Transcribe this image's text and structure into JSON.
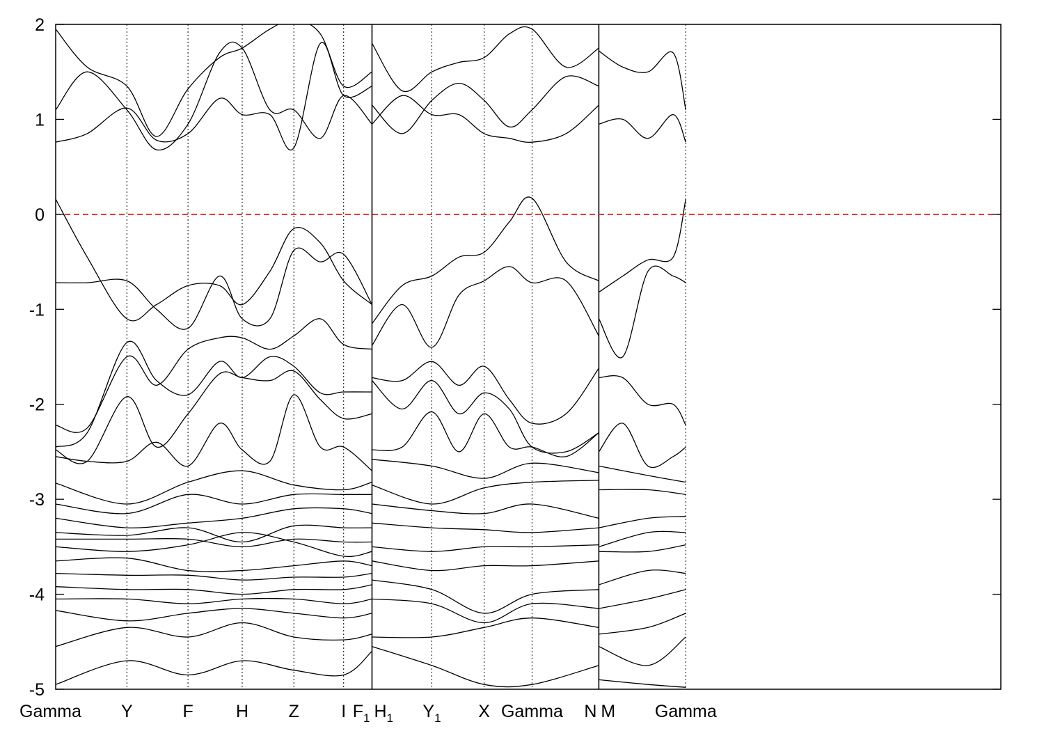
{
  "chart_data": {
    "type": "line",
    "title": "",
    "xlabel": "",
    "ylabel": "",
    "ylim": [
      -5,
      2
    ],
    "yticks": [
      -5,
      -4,
      -3,
      -2,
      -1,
      0,
      1,
      2
    ],
    "grid": "dotted vertical lines at high-symmetry points",
    "legend": "none",
    "x_range": [
      0,
      15
    ],
    "kpoints": [
      {
        "label": "Gamma",
        "sub": "",
        "x": 0
      },
      {
        "label": "Y",
        "sub": "",
        "x": 1.13
      },
      {
        "label": "F",
        "sub": "",
        "x": 2.1
      },
      {
        "label": "H",
        "sub": "",
        "x": 2.96
      },
      {
        "label": "Z",
        "sub": "",
        "x": 3.78
      },
      {
        "label": "I",
        "sub": "",
        "x": 4.57
      },
      {
        "label": "F",
        "sub": "1",
        "x": 5.02
      },
      {
        "label": "H",
        "sub": "1",
        "x": 5.02
      },
      {
        "label": "Y",
        "sub": "1",
        "x": 5.97
      },
      {
        "label": "X",
        "sub": "",
        "x": 6.8
      },
      {
        "label": "Gamma",
        "sub": "",
        "x": 7.56
      },
      {
        "label": "N",
        "sub": "",
        "x": 8.62
      },
      {
        "label": "M",
        "sub": "",
        "x": 8.62
      },
      {
        "label": "Gamma",
        "sub": "",
        "x": 10
      }
    ],
    "fermi_level": {
      "y": 0,
      "color": "#dd0000"
    },
    "segment_breaks": [
      5.02,
      8.62
    ],
    "band_color": "#000000",
    "bands": [
      {
        "x": [
          0,
          0.5,
          1.13,
          1.6,
          2.1,
          2.6,
          2.96,
          3.4,
          3.78,
          4.2,
          4.57,
          5.02
        ],
        "y": [
          0.16,
          -0.45,
          -1.1,
          -0.95,
          -0.75,
          -0.75,
          -0.95,
          -0.6,
          -0.15,
          -0.3,
          -0.7,
          -0.95
        ]
      },
      {
        "x": [
          0,
          0.5,
          1.13,
          1.6,
          2.1,
          2.6,
          2.96,
          3.4,
          3.78,
          4.2,
          4.57,
          5.02
        ],
        "y": [
          -0.72,
          -0.72,
          -0.7,
          -1.0,
          -1.2,
          -0.65,
          -1.1,
          -1.1,
          -0.38,
          -0.5,
          -0.42,
          -0.95
        ]
      },
      {
        "x": [
          5.02,
          5.5,
          5.97,
          6.4,
          6.8,
          7.2,
          7.56,
          8.1,
          8.62
        ],
        "y": [
          -1.15,
          -0.75,
          -0.65,
          -0.45,
          -0.4,
          -0.08,
          0.17,
          -0.5,
          -0.7
        ]
      },
      {
        "x": [
          5.02,
          5.5,
          5.97,
          6.4,
          6.8,
          7.2,
          7.56,
          8.1,
          8.62
        ],
        "y": [
          -1.38,
          -0.95,
          -1.4,
          -0.85,
          -0.7,
          -0.55,
          -0.72,
          -0.7,
          -1.28
        ]
      },
      {
        "x": [
          8.62,
          9.0,
          9.4,
          9.8,
          10
        ],
        "y": [
          -0.82,
          -0.65,
          -0.48,
          -0.45,
          0.16
        ]
      },
      {
        "x": [
          8.62,
          9.0,
          9.4,
          9.8,
          10
        ],
        "y": [
          -1.1,
          -1.5,
          -0.6,
          -0.65,
          -0.72
        ]
      },
      {
        "x": [
          0,
          0.5,
          1.13,
          1.6,
          2.1,
          2.6,
          2.96,
          3.4,
          3.78,
          4.2,
          4.57,
          5.02
        ],
        "y": [
          0.76,
          0.85,
          1.12,
          0.78,
          0.85,
          1.22,
          1.05,
          1.05,
          0.7,
          1.8,
          1.25,
          1.35
        ]
      },
      {
        "x": [
          0,
          0.5,
          1.13,
          1.6,
          2.1,
          2.6,
          2.96,
          3.4,
          3.78,
          4.2,
          4.57,
          5.02
        ],
        "y": [
          1.1,
          1.5,
          1.1,
          0.68,
          0.95,
          1.7,
          1.75,
          1.1,
          1.1,
          0.8,
          1.25,
          0.95
        ]
      },
      {
        "x": [
          0,
          0.5,
          1.13,
          1.6,
          2.1,
          2.6,
          2.96,
          3.4,
          3.78,
          4.2,
          4.57,
          5.02
        ],
        "y": [
          1.95,
          1.55,
          1.35,
          0.82,
          1.32,
          1.65,
          1.75,
          1.95,
          2.05,
          1.9,
          1.35,
          1.5
        ]
      },
      {
        "x": [
          5.02,
          5.5,
          5.97,
          6.4,
          6.8,
          7.2,
          7.56,
          8.1,
          8.62
        ],
        "y": [
          0.95,
          1.25,
          1.05,
          1.05,
          0.85,
          0.8,
          0.76,
          0.85,
          1.15
        ]
      },
      {
        "x": [
          5.02,
          5.5,
          5.97,
          6.4,
          6.8,
          7.2,
          7.56,
          8.1,
          8.62
        ],
        "y": [
          1.15,
          0.85,
          1.2,
          1.38,
          1.2,
          0.92,
          1.1,
          1.45,
          1.35
        ]
      },
      {
        "x": [
          5.02,
          5.5,
          5.97,
          6.4,
          6.8,
          7.2,
          7.56,
          8.1,
          8.62
        ],
        "y": [
          1.8,
          1.3,
          1.5,
          1.6,
          1.65,
          1.9,
          1.95,
          1.55,
          1.75
        ]
      },
      {
        "x": [
          8.62,
          9.0,
          9.4,
          9.8,
          10
        ],
        "y": [
          0.95,
          1.0,
          0.8,
          1.05,
          0.76
        ]
      },
      {
        "x": [
          8.62,
          9.0,
          9.4,
          9.8,
          10
        ],
        "y": [
          1.72,
          1.55,
          1.5,
          1.7,
          1.1
        ]
      },
      {
        "x": [
          0,
          0.5,
          1.13,
          1.6,
          2.1,
          2.6,
          2.96,
          3.4,
          3.78,
          4.2,
          4.57,
          5.02
        ],
        "y": [
          -2.22,
          -2.25,
          -1.5,
          -1.8,
          -1.42,
          -1.3,
          -1.3,
          -1.42,
          -1.28,
          -1.1,
          -1.37,
          -1.42
        ]
      },
      {
        "x": [
          0,
          0.5,
          1.13,
          1.6,
          2.1,
          2.6,
          2.96,
          3.4,
          3.78,
          4.2,
          4.57,
          5.02
        ],
        "y": [
          -2.45,
          -2.3,
          -1.35,
          -1.75,
          -1.9,
          -1.55,
          -1.72,
          -1.5,
          -1.6,
          -1.88,
          -1.87,
          -1.87
        ]
      },
      {
        "x": [
          0,
          0.5,
          1.13,
          1.6,
          2.1,
          2.6,
          2.96,
          3.4,
          3.78,
          4.2,
          4.57,
          5.02
        ],
        "y": [
          -2.48,
          -2.6,
          -1.92,
          -2.45,
          -2.1,
          -1.68,
          -1.72,
          -1.75,
          -1.65,
          -1.95,
          -2.15,
          -2.1
        ]
      },
      {
        "x": [
          0,
          0.5,
          1.13,
          1.6,
          2.1,
          2.6,
          2.96,
          3.4,
          3.78,
          4.2,
          4.57,
          5.02
        ],
        "y": [
          -2.55,
          -2.6,
          -2.6,
          -2.4,
          -2.65,
          -2.2,
          -2.48,
          -2.6,
          -1.9,
          -2.45,
          -2.45,
          -2.7
        ]
      },
      {
        "x": [
          5.02,
          5.5,
          5.97,
          6.4,
          6.8,
          7.2,
          7.56,
          8.1,
          8.62
        ],
        "y": [
          -1.72,
          -1.75,
          -1.55,
          -1.8,
          -1.6,
          -1.95,
          -2.2,
          -2.1,
          -1.62
        ]
      },
      {
        "x": [
          5.02,
          5.5,
          5.97,
          6.4,
          6.8,
          7.2,
          7.56,
          8.1,
          8.62
        ],
        "y": [
          -1.75,
          -2.05,
          -1.75,
          -2.1,
          -1.88,
          -2.05,
          -2.45,
          -2.5,
          -2.3
        ]
      },
      {
        "x": [
          5.02,
          5.5,
          5.97,
          6.4,
          6.8,
          7.2,
          7.56,
          8.1,
          8.62
        ],
        "y": [
          -2.48,
          -2.45,
          -2.08,
          -2.5,
          -2.1,
          -2.45,
          -2.45,
          -2.55,
          -2.3
        ]
      },
      {
        "x": [
          8.62,
          9.0,
          9.4,
          9.8,
          10
        ],
        "y": [
          -1.72,
          -1.72,
          -2.0,
          -2.0,
          -2.22
        ]
      },
      {
        "x": [
          8.62,
          9.0,
          9.4,
          9.8,
          10
        ],
        "y": [
          -2.5,
          -2.2,
          -2.65,
          -2.55,
          -2.45
        ]
      },
      {
        "x": [
          0,
          1.13,
          2.1,
          2.96,
          3.78,
          4.57,
          5.02
        ],
        "y": [
          -2.83,
          -3.05,
          -2.82,
          -2.7,
          -2.85,
          -2.9,
          -2.82
        ]
      },
      {
        "x": [
          0,
          1.13,
          2.1,
          2.96,
          3.78,
          4.57,
          5.02
        ],
        "y": [
          -3.05,
          -3.15,
          -2.95,
          -3.05,
          -2.95,
          -2.95,
          -2.95
        ]
      },
      {
        "x": [
          0,
          1.13,
          2.1,
          2.96,
          3.78,
          4.57,
          5.02
        ],
        "y": [
          -3.2,
          -3.3,
          -3.25,
          -3.2,
          -3.1,
          -3.1,
          -3.15
        ]
      },
      {
        "x": [
          0,
          1.13,
          2.1,
          2.96,
          3.78,
          4.57,
          5.02
        ],
        "y": [
          -3.35,
          -3.38,
          -3.3,
          -3.45,
          -3.28,
          -3.3,
          -3.3
        ]
      },
      {
        "x": [
          0,
          1.13,
          2.1,
          2.96,
          3.78,
          4.57,
          5.02
        ],
        "y": [
          -3.42,
          -3.42,
          -3.42,
          -3.5,
          -3.42,
          -3.45,
          -3.45
        ]
      },
      {
        "x": [
          0,
          1.13,
          2.1,
          2.96,
          3.78,
          4.57,
          5.02
        ],
        "y": [
          -3.5,
          -3.55,
          -3.48,
          -3.35,
          -3.45,
          -3.6,
          -3.55
        ]
      },
      {
        "x": [
          0,
          1.13,
          2.1,
          2.96,
          3.78,
          4.57,
          5.02
        ],
        "y": [
          -3.65,
          -3.62,
          -3.75,
          -3.75,
          -3.7,
          -3.65,
          -3.7
        ]
      },
      {
        "x": [
          0,
          1.13,
          2.1,
          2.96,
          3.78,
          4.57,
          5.02
        ],
        "y": [
          -3.78,
          -3.8,
          -3.8,
          -3.85,
          -3.82,
          -3.82,
          -3.78
        ]
      },
      {
        "x": [
          0,
          1.13,
          2.1,
          2.96,
          3.78,
          4.57,
          5.02
        ],
        "y": [
          -3.92,
          -3.95,
          -3.95,
          -4.0,
          -3.95,
          -3.95,
          -3.9
        ]
      },
      {
        "x": [
          0,
          1.13,
          2.1,
          2.96,
          3.78,
          4.57,
          5.02
        ],
        "y": [
          -4.05,
          -4.05,
          -4.1,
          -4.05,
          -4.05,
          -4.1,
          -4.05
        ]
      },
      {
        "x": [
          0,
          1.13,
          2.1,
          2.96,
          3.78,
          4.57,
          5.02
        ],
        "y": [
          -4.17,
          -4.28,
          -4.2,
          -4.15,
          -4.2,
          -4.25,
          -4.2
        ]
      },
      {
        "x": [
          0,
          1.13,
          2.1,
          2.96,
          3.78,
          4.57,
          5.02
        ],
        "y": [
          -4.55,
          -4.35,
          -4.45,
          -4.3,
          -4.45,
          -4.48,
          -4.42
        ]
      },
      {
        "x": [
          0,
          1.13,
          2.1,
          2.96,
          3.78,
          4.57,
          5.02
        ],
        "y": [
          -4.95,
          -4.7,
          -4.85,
          -4.7,
          -4.8,
          -4.85,
          -4.6
        ]
      },
      {
        "x": [
          5.02,
          5.97,
          6.8,
          7.56,
          8.62
        ],
        "y": [
          -2.58,
          -2.65,
          -2.78,
          -2.62,
          -2.72
        ]
      },
      {
        "x": [
          5.02,
          5.97,
          6.8,
          7.56,
          8.62
        ],
        "y": [
          -2.85,
          -3.05,
          -2.88,
          -2.82,
          -2.8
        ]
      },
      {
        "x": [
          5.02,
          5.97,
          6.8,
          7.56,
          8.62
        ],
        "y": [
          -3.05,
          -3.12,
          -3.15,
          -3.05,
          -3.2
        ]
      },
      {
        "x": [
          5.02,
          5.97,
          6.8,
          7.56,
          8.62
        ],
        "y": [
          -3.25,
          -3.3,
          -3.32,
          -3.35,
          -3.3
        ]
      },
      {
        "x": [
          5.02,
          5.97,
          6.8,
          7.56,
          8.62
        ],
        "y": [
          -3.5,
          -3.55,
          -3.5,
          -3.5,
          -3.48
        ]
      },
      {
        "x": [
          5.02,
          5.97,
          6.8,
          7.56,
          8.62
        ],
        "y": [
          -3.65,
          -3.75,
          -3.7,
          -3.7,
          -3.65
        ]
      },
      {
        "x": [
          5.02,
          5.97,
          6.8,
          7.56,
          8.62
        ],
        "y": [
          -3.85,
          -3.95,
          -4.2,
          -4.0,
          -3.95
        ]
      },
      {
        "x": [
          5.02,
          5.97,
          6.8,
          7.56,
          8.62
        ],
        "y": [
          -4.05,
          -4.1,
          -4.3,
          -4.1,
          -4.15
        ]
      },
      {
        "x": [
          5.02,
          5.97,
          6.8,
          7.56,
          8.62
        ],
        "y": [
          -4.45,
          -4.45,
          -4.35,
          -4.25,
          -4.35
        ]
      },
      {
        "x": [
          5.02,
          5.97,
          6.8,
          7.56,
          8.62
        ],
        "y": [
          -4.55,
          -4.75,
          -4.95,
          -4.95,
          -4.75
        ]
      },
      {
        "x": [
          8.62,
          9.4,
          10
        ],
        "y": [
          -2.65,
          -2.75,
          -2.82
        ]
      },
      {
        "x": [
          8.62,
          9.4,
          10
        ],
        "y": [
          -2.9,
          -2.9,
          -2.95
        ]
      },
      {
        "x": [
          8.62,
          9.4,
          10
        ],
        "y": [
          -3.3,
          -3.2,
          -3.18
        ]
      },
      {
        "x": [
          8.62,
          9.4,
          10
        ],
        "y": [
          -3.5,
          -3.35,
          -3.35
        ]
      },
      {
        "x": [
          8.62,
          9.4,
          10
        ],
        "y": [
          -3.55,
          -3.55,
          -3.48
        ]
      },
      {
        "x": [
          8.62,
          9.4,
          10
        ],
        "y": [
          -3.9,
          -3.75,
          -3.78
        ]
      },
      {
        "x": [
          8.62,
          9.4,
          10
        ],
        "y": [
          -4.15,
          -4.05,
          -3.95
        ]
      },
      {
        "x": [
          8.62,
          9.4,
          10
        ],
        "y": [
          -4.42,
          -4.35,
          -4.2
        ]
      },
      {
        "x": [
          8.62,
          9.4,
          10
        ],
        "y": [
          -4.55,
          -4.75,
          -4.45
        ]
      },
      {
        "x": [
          8.62,
          9.4,
          10
        ],
        "y": [
          -4.9,
          -4.95,
          -4.98
        ]
      }
    ]
  }
}
